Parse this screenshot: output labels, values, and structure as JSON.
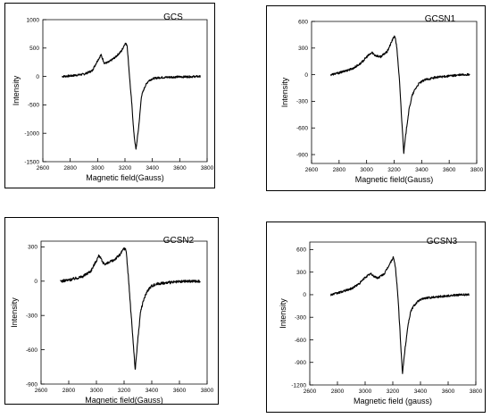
{
  "chart_data": [
    {
      "type": "line",
      "title": "GCS",
      "xlabel": "Magnetic field(Gauss)",
      "ylabel": "Intensity",
      "xlim": [
        2600,
        3800
      ],
      "ylim": [
        -1500,
        1000
      ],
      "xticks": [
        2600,
        2800,
        3000,
        3200,
        3400,
        3600,
        3800
      ],
      "yticks": [
        -1500,
        -1000,
        -500,
        0,
        500,
        1000
      ],
      "noise": 18,
      "series": [
        {
          "x": [
            2740,
            2800,
            2900,
            2960,
            3000,
            3025,
            3050,
            3080,
            3130,
            3175,
            3200,
            3215,
            3230,
            3250,
            3265,
            3280,
            3300,
            3320,
            3345,
            3370,
            3400,
            3450,
            3550,
            3650,
            3750
          ],
          "y": [
            0,
            10,
            40,
            100,
            280,
            380,
            230,
            250,
            340,
            450,
            580,
            560,
            100,
            -500,
            -1000,
            -1290,
            -900,
            -350,
            -180,
            -80,
            -40,
            -20,
            -10,
            -5,
            0
          ]
        }
      ]
    },
    {
      "type": "line",
      "title": "GCSN1",
      "xlabel": "Magnetic field(Gauss)",
      "ylabel": "Intensity",
      "xlim": [
        2600,
        3800
      ],
      "ylim": [
        -1000,
        600
      ],
      "xticks": [
        2600,
        2800,
        3000,
        3200,
        3400,
        3600,
        3800
      ],
      "yticks": [
        -900,
        -600,
        -300,
        0,
        300,
        600
      ],
      "noise": 12,
      "series": [
        {
          "x": [
            2740,
            2800,
            2900,
            2960,
            3000,
            3040,
            3060,
            3100,
            3150,
            3190,
            3205,
            3220,
            3240,
            3255,
            3270,
            3290,
            3310,
            3330,
            3350,
            3380,
            3420,
            3500,
            3600,
            3700,
            3750
          ],
          "y": [
            0,
            20,
            70,
            130,
            200,
            250,
            220,
            200,
            260,
            400,
            440,
            300,
            -100,
            -500,
            -880,
            -600,
            -380,
            -240,
            -170,
            -100,
            -60,
            -30,
            -15,
            0,
            0
          ]
        }
      ]
    },
    {
      "type": "line",
      "title": "GCSN2",
      "xlabel": "Magnetic field(Gauss)",
      "ylabel": "Intensity",
      "xlim": [
        2600,
        3800
      ],
      "ylim": [
        -900,
        350
      ],
      "xticks": [
        2600,
        2800,
        3000,
        3200,
        3400,
        3600,
        3800
      ],
      "yticks": [
        -900,
        -600,
        -300,
        0,
        300
      ],
      "noise": 12,
      "series": [
        {
          "x": [
            2740,
            2800,
            2900,
            2960,
            3000,
            3020,
            3045,
            3070,
            3120,
            3170,
            3200,
            3215,
            3230,
            3250,
            3265,
            3280,
            3300,
            3320,
            3345,
            3370,
            3400,
            3450,
            3550,
            3650,
            3750
          ],
          "y": [
            0,
            10,
            40,
            90,
            180,
            230,
            160,
            150,
            180,
            230,
            290,
            270,
            50,
            -280,
            -520,
            -780,
            -500,
            -260,
            -150,
            -80,
            -40,
            -20,
            -10,
            0,
            0
          ]
        }
      ]
    },
    {
      "type": "line",
      "title": "GCSN3",
      "xlabel": "Magnetic field (gauss)",
      "ylabel": "Intensity",
      "xlim": [
        2600,
        3800
      ],
      "ylim": [
        -1200,
        700
      ],
      "xticks": [
        2600,
        2800,
        3000,
        3200,
        3400,
        3600,
        3800
      ],
      "yticks": [
        -1200,
        -900,
        -600,
        -300,
        0,
        300,
        600
      ],
      "noise": 14,
      "series": [
        {
          "x": [
            2750,
            2800,
            2900,
            2960,
            3000,
            3040,
            3060,
            3090,
            3140,
            3190,
            3205,
            3220,
            3240,
            3255,
            3270,
            3290,
            3310,
            3330,
            3350,
            3380,
            3420,
            3500,
            3600,
            3700,
            3750
          ],
          "y": [
            0,
            20,
            80,
            150,
            230,
            280,
            250,
            220,
            280,
            450,
            500,
            350,
            -100,
            -600,
            -1040,
            -700,
            -400,
            -220,
            -150,
            -90,
            -50,
            -30,
            -15,
            0,
            0
          ]
        }
      ]
    }
  ]
}
